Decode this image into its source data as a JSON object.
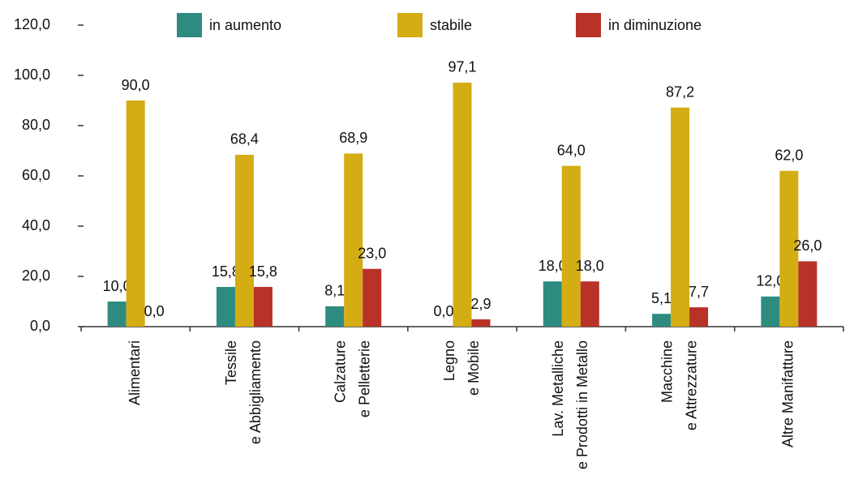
{
  "chart_data": {
    "type": "bar",
    "categories": [
      [
        "Alimentari"
      ],
      [
        "Tessile",
        "e Abbigliamento"
      ],
      [
        "Calzature",
        "e Pelletterie"
      ],
      [
        "Legno",
        "e Mobile"
      ],
      [
        "Lav. Metalliche",
        "e Prodotti in Metallo"
      ],
      [
        "Macchine",
        "e Attrezzature"
      ],
      [
        "Altre Manifatture"
      ]
    ],
    "series": [
      {
        "name": "in aumento",
        "color": "#2e8b80",
        "values": [
          10,
          15.8,
          8.1,
          0,
          18,
          5.1,
          12
        ],
        "value_labels": [
          "10,0",
          "15,8",
          "8,1",
          "0,0",
          "18,0",
          "5,1",
          "12,0"
        ]
      },
      {
        "name": "stabile",
        "color": "#d4ac14",
        "values": [
          90,
          68.4,
          68.9,
          97.1,
          64,
          87.2,
          62
        ],
        "value_labels": [
          "90,0",
          "68,4",
          "68,9",
          "97,1",
          "64,0",
          "87,2",
          "62,0"
        ]
      },
      {
        "name": "in diminuzione",
        "color": "#b83228",
        "values": [
          0,
          15.8,
          23,
          2.9,
          18,
          7.7,
          26
        ],
        "value_labels": [
          "0,0",
          "15,8",
          "23,0",
          "2,9",
          "18,0",
          "7,7",
          "26,0"
        ]
      }
    ],
    "ylim": [
      0,
      120
    ],
    "yticks": [
      {
        "value": 0,
        "label": "0,0"
      },
      {
        "value": 20,
        "label": "20,0"
      },
      {
        "value": 40,
        "label": "40,0"
      },
      {
        "value": 60,
        "label": "60,0"
      },
      {
        "value": 80,
        "label": "80,0"
      },
      {
        "value": 100,
        "label": "100,0"
      },
      {
        "value": 120,
        "label": "120,0"
      }
    ],
    "legend": "top"
  }
}
